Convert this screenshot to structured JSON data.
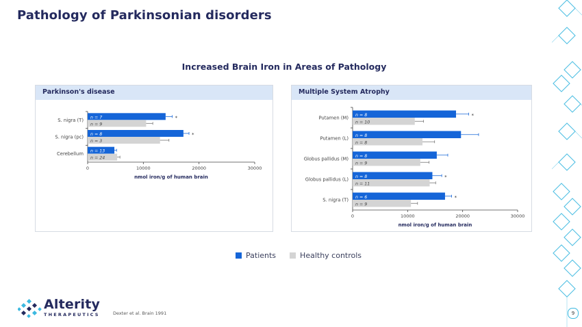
{
  "slide": {
    "title": "Pathology of Parkinsonian disorders",
    "figure_title": "Increased Brain Iron in Areas of Pathology",
    "citation": "Dexter et al. Brain 1991",
    "page_number": "9",
    "logo_name": "Alterity",
    "logo_sub": "THERAPEUTICS"
  },
  "legend": {
    "patients": "Patients",
    "controls": "Healthy controls"
  },
  "colors": {
    "patients": "#1565d8",
    "controls": "#d4d4d4",
    "header_bg": "#d9e6f7",
    "title": "#242a5e",
    "accent": "#3cb9e0"
  },
  "chart_data": [
    {
      "type": "bar",
      "title": "Parkinson's disease",
      "xlabel": "nmol iron/g of human brain",
      "xlim": [
        0,
        30000
      ],
      "xticks": [
        "0",
        "10000",
        "20000",
        "30000"
      ],
      "categories": [
        "S. nigra (T)",
        "S. nigra (pc)",
        "Cerebellum"
      ],
      "series": [
        {
          "name": "Patients",
          "values": [
            14000,
            17200,
            4800
          ],
          "errors": [
            1200,
            1000,
            400
          ],
          "n_labels": [
            "n = 7",
            "n = 8",
            "n = 13"
          ],
          "significant": [
            true,
            true,
            false
          ]
        },
        {
          "name": "Healthy controls",
          "values": [
            10500,
            13000,
            5300
          ],
          "errors": [
            1200,
            1600,
            500
          ],
          "n_labels": [
            "n = 9",
            "n = 3",
            "n = 24"
          ]
        }
      ],
      "star": "*"
    },
    {
      "type": "bar",
      "title": "Multiple System Atrophy",
      "xlabel": "nmol iron/g of human brain",
      "xlim": [
        0,
        30000
      ],
      "xticks": [
        "0",
        "10000",
        "20000",
        "30000"
      ],
      "categories": [
        "Putamen (M)",
        "Putamen (L)",
        "Globus pallidus (M)",
        "Globus pallidus (L)",
        "S. nigra (T)"
      ],
      "series": [
        {
          "name": "Patients",
          "values": [
            18800,
            19700,
            15300,
            14500,
            16800
          ],
          "errors": [
            2300,
            3200,
            2000,
            1700,
            1200
          ],
          "n_labels": [
            "n = 8",
            "n = 8",
            "n = 8",
            "n = 8",
            "n = 6"
          ],
          "significant": [
            true,
            false,
            false,
            true,
            true
          ]
        },
        {
          "name": "Healthy controls",
          "values": [
            11300,
            12700,
            12300,
            14000,
            10600
          ],
          "errors": [
            1600,
            2200,
            1600,
            1100,
            1200
          ],
          "n_labels": [
            "n = 10",
            "n = 8",
            "n = 9",
            "n = 11",
            "n = 9"
          ]
        }
      ],
      "star": "*"
    }
  ]
}
